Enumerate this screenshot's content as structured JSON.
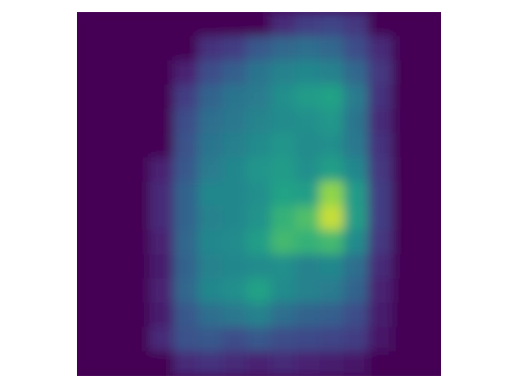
{
  "chart_data": {
    "type": "heatmap",
    "colormap": "viridis",
    "title": "",
    "xlabel": "",
    "ylabel": "",
    "axes_visible": false,
    "grid": false,
    "legend": "none",
    "value_range": [
      0,
      1
    ],
    "grid_size": [
      15,
      15
    ],
    "rows": [
      [
        0.0,
        0.0,
        0.0,
        0.0,
        0.0,
        0.0,
        0.0,
        0.0,
        0.15,
        0.22,
        0.25,
        0.2,
        0.0,
        0.0,
        0.0
      ],
      [
        0.0,
        0.0,
        0.0,
        0.0,
        0.0,
        0.18,
        0.22,
        0.35,
        0.42,
        0.45,
        0.42,
        0.3,
        0.15,
        0.0,
        0.0
      ],
      [
        0.0,
        0.0,
        0.0,
        0.0,
        0.12,
        0.3,
        0.38,
        0.48,
        0.55,
        0.58,
        0.55,
        0.42,
        0.2,
        0.0,
        0.0
      ],
      [
        0.0,
        0.0,
        0.0,
        0.0,
        0.22,
        0.4,
        0.48,
        0.52,
        0.62,
        0.68,
        0.72,
        0.52,
        0.18,
        0.0,
        0.0
      ],
      [
        0.0,
        0.0,
        0.0,
        0.0,
        0.3,
        0.45,
        0.5,
        0.56,
        0.6,
        0.62,
        0.66,
        0.48,
        0.15,
        0.0,
        0.0
      ],
      [
        0.0,
        0.0,
        0.0,
        0.0,
        0.32,
        0.48,
        0.54,
        0.6,
        0.65,
        0.6,
        0.62,
        0.5,
        0.18,
        0.0,
        0.0
      ],
      [
        0.0,
        0.0,
        0.0,
        0.12,
        0.35,
        0.52,
        0.58,
        0.65,
        0.68,
        0.62,
        0.7,
        0.58,
        0.2,
        0.0,
        0.0
      ],
      [
        0.0,
        0.0,
        0.0,
        0.15,
        0.4,
        0.58,
        0.58,
        0.62,
        0.72,
        0.7,
        0.9,
        0.68,
        0.22,
        0.0,
        0.0
      ],
      [
        0.0,
        0.0,
        0.0,
        0.15,
        0.4,
        0.55,
        0.58,
        0.64,
        0.78,
        0.82,
        0.95,
        0.7,
        0.22,
        0.0,
        0.0
      ],
      [
        0.0,
        0.0,
        0.0,
        0.12,
        0.42,
        0.58,
        0.6,
        0.7,
        0.8,
        0.78,
        0.8,
        0.6,
        0.2,
        0.0,
        0.0
      ],
      [
        0.0,
        0.0,
        0.0,
        0.1,
        0.4,
        0.55,
        0.58,
        0.6,
        0.62,
        0.55,
        0.58,
        0.45,
        0.15,
        0.0,
        0.0
      ],
      [
        0.0,
        0.0,
        0.0,
        0.12,
        0.42,
        0.58,
        0.62,
        0.72,
        0.6,
        0.55,
        0.52,
        0.4,
        0.12,
        0.0,
        0.0
      ],
      [
        0.0,
        0.0,
        0.0,
        0.1,
        0.35,
        0.45,
        0.5,
        0.55,
        0.45,
        0.4,
        0.38,
        0.3,
        0.1,
        0.0,
        0.0
      ],
      [
        0.0,
        0.0,
        0.0,
        0.15,
        0.32,
        0.35,
        0.3,
        0.35,
        0.3,
        0.28,
        0.25,
        0.22,
        0.08,
        0.0,
        0.0
      ],
      [
        0.0,
        0.0,
        0.0,
        0.0,
        0.15,
        0.18,
        0.15,
        0.12,
        0.15,
        0.12,
        0.1,
        0.08,
        0.0,
        0.0,
        0.0
      ]
    ]
  }
}
